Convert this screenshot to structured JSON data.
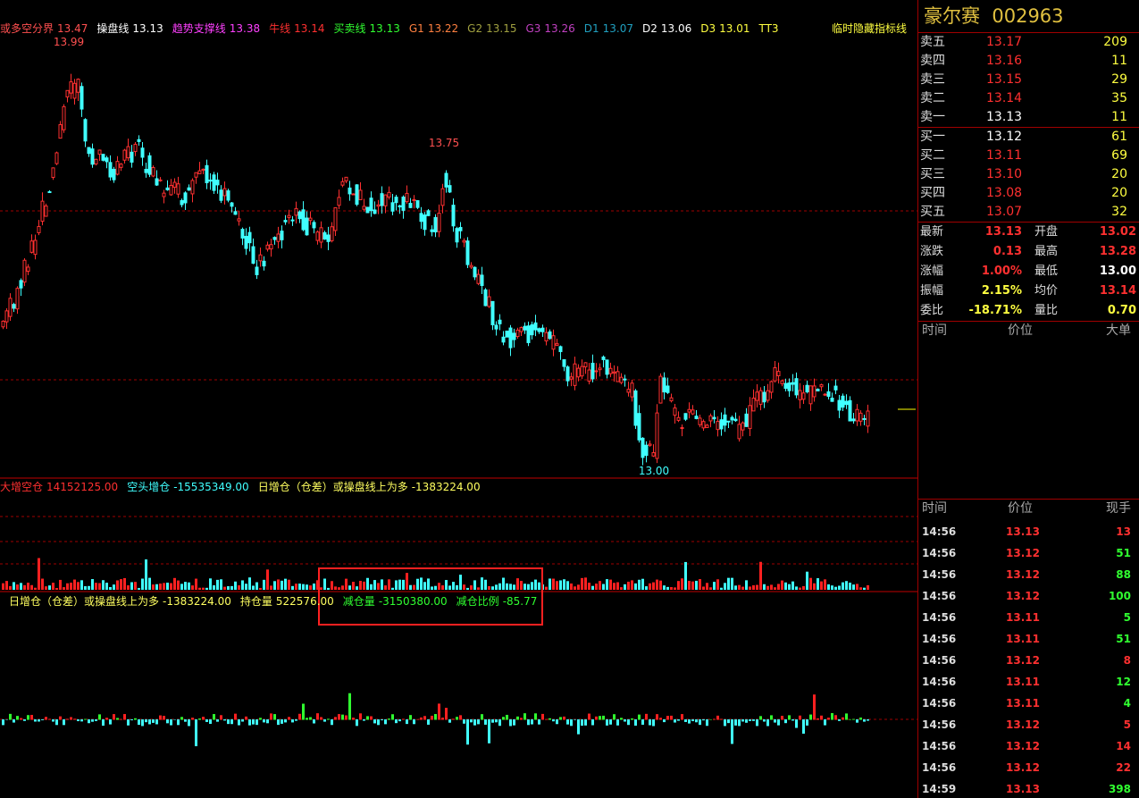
{
  "stock": {
    "name": "豪尔赛",
    "code": "002963"
  },
  "indicator_bar": {
    "items": [
      {
        "label": "或多空分界",
        "value": "13.47",
        "color": "#ff5050"
      },
      {
        "label": "操盘线",
        "value": "13.13",
        "color": "#ffffff"
      },
      {
        "label": "趋势支撑线",
        "value": "13.38",
        "color": "#ff40ff"
      },
      {
        "label": "牛线",
        "value": "13.14",
        "color": "#ff3030"
      },
      {
        "label": "买卖线",
        "value": "13.13",
        "color": "#30ff30"
      },
      {
        "label": "G1",
        "value": "13.22",
        "color": "#ff8040"
      },
      {
        "label": "G2",
        "value": "13.15",
        "color": "#a0a040"
      },
      {
        "label": "G3",
        "value": "13.26",
        "color": "#c040c0"
      },
      {
        "label": "D1",
        "value": "13.07",
        "color": "#20a0c0"
      },
      {
        "label": "D2",
        "value": "13.06",
        "color": "#ffffff"
      },
      {
        "label": "D3",
        "value": "13.01",
        "color": "#ffff40"
      },
      {
        "label": "TT3",
        "value": "",
        "color": "#ffff40"
      }
    ],
    "right_label": "临时隐藏指标线"
  },
  "price_labels": {
    "high": "13.99",
    "mid_high": "13.75",
    "low": "13.00"
  },
  "panel2": {
    "items": [
      {
        "label": "大增空仓",
        "value": "14152125.00",
        "color": "#ff3030"
      },
      {
        "label": "空头增仓",
        "value": "-15535349.00",
        "color": "#40ffff"
      },
      {
        "label": "日增仓（仓差）或操盘线上为多",
        "value": "-1383224.00",
        "color": "#ffff60"
      }
    ]
  },
  "panel3": {
    "items": [
      {
        "label": "日增仓（仓差）或操盘线上为多",
        "value": "-1383224.00",
        "color": "#ffff60"
      },
      {
        "label": "持仓量",
        "value": "522576.00",
        "color": "#ffff60"
      },
      {
        "label": "减仓量",
        "value": "-3150380.00",
        "color": "#30ff30"
      },
      {
        "label": "减仓比例",
        "value": "-85.77",
        "color": "#30ff30"
      }
    ]
  },
  "order_book": {
    "sells": [
      {
        "label": "卖五",
        "price": "13.17",
        "volume": "209",
        "color": "#ff3030"
      },
      {
        "label": "卖四",
        "price": "13.16",
        "volume": "11",
        "color": "#ff3030"
      },
      {
        "label": "卖三",
        "price": "13.15",
        "volume": "29",
        "color": "#ff3030"
      },
      {
        "label": "卖二",
        "price": "13.14",
        "volume": "35",
        "color": "#ff3030"
      },
      {
        "label": "卖一",
        "price": "13.13",
        "volume": "11",
        "color": "#ffffff"
      }
    ],
    "buys": [
      {
        "label": "买一",
        "price": "13.12",
        "volume": "61",
        "color": "#ffffff"
      },
      {
        "label": "买二",
        "price": "13.11",
        "volume": "69",
        "color": "#ff3030"
      },
      {
        "label": "买三",
        "price": "13.10",
        "volume": "20",
        "color": "#ff3030"
      },
      {
        "label": "买四",
        "price": "13.08",
        "volume": "20",
        "color": "#ff3030"
      },
      {
        "label": "买五",
        "price": "13.07",
        "volume": "32",
        "color": "#ff3030"
      }
    ]
  },
  "stats": [
    [
      {
        "label": "最新",
        "value": "13.13",
        "color": "#ff3030"
      },
      {
        "label": "开盘",
        "value": "13.02",
        "color": "#ff3030"
      }
    ],
    [
      {
        "label": "涨跌",
        "value": "0.13",
        "color": "#ff3030"
      },
      {
        "label": "最高",
        "value": "13.28",
        "color": "#ff3030"
      }
    ],
    [
      {
        "label": "涨幅",
        "value": "1.00%",
        "color": "#ff3030"
      },
      {
        "label": "最低",
        "value": "13.00",
        "color": "#ffffff"
      }
    ],
    [
      {
        "label": "振幅",
        "value": "2.15%",
        "color": "#ffff40"
      },
      {
        "label": "均价",
        "value": "13.14",
        "color": "#ff3030"
      }
    ],
    [
      {
        "label": "委比",
        "value": "-18.71%",
        "color": "#ffff40"
      },
      {
        "label": "量比",
        "value": "0.70",
        "color": "#ffff40"
      }
    ]
  ],
  "big_orders": {
    "header": [
      "时间",
      "价位",
      "大单"
    ]
  },
  "trades": {
    "header": [
      "时间",
      "价位",
      "现手"
    ],
    "rows": [
      {
        "time": "14:56",
        "price": "13.13",
        "volume": "13",
        "color": "#ff3030"
      },
      {
        "time": "14:56",
        "price": "13.12",
        "volume": "51",
        "color": "#30ff30"
      },
      {
        "time": "14:56",
        "price": "13.12",
        "volume": "88",
        "color": "#30ff30"
      },
      {
        "time": "14:56",
        "price": "13.12",
        "volume": "100",
        "color": "#30ff30"
      },
      {
        "time": "14:56",
        "price": "13.11",
        "volume": "5",
        "color": "#30ff30"
      },
      {
        "time": "14:56",
        "price": "13.11",
        "volume": "51",
        "color": "#30ff30"
      },
      {
        "time": "14:56",
        "price": "13.12",
        "volume": "8",
        "color": "#ff3030"
      },
      {
        "time": "14:56",
        "price": "13.11",
        "volume": "12",
        "color": "#30ff30"
      },
      {
        "time": "14:56",
        "price": "13.11",
        "volume": "4",
        "color": "#30ff30"
      },
      {
        "time": "14:56",
        "price": "13.12",
        "volume": "5",
        "color": "#ff3030"
      },
      {
        "time": "14:56",
        "price": "13.12",
        "volume": "14",
        "color": "#ff3030"
      },
      {
        "time": "14:56",
        "price": "13.12",
        "volume": "22",
        "color": "#ff3030"
      },
      {
        "time": "14:59",
        "price": "13.13",
        "volume": "398",
        "color": "#30ff30"
      }
    ]
  }
}
